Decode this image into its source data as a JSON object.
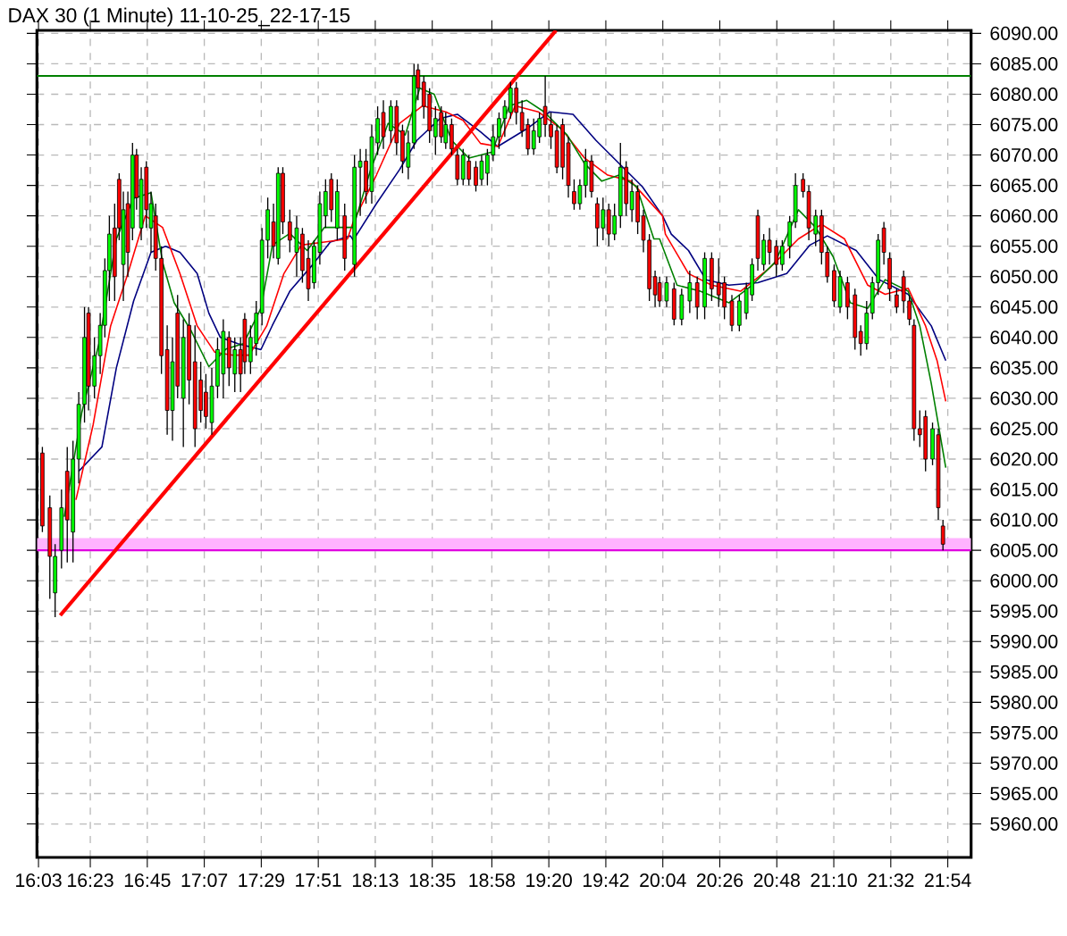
{
  "chart_data": {
    "type": "candlestick",
    "title": "DAX 30 (1 Minute) 11-10-25_22-17-15",
    "xlim": [
      16.04,
      22.05
    ],
    "ylim": [
      5954.5,
      6090.5
    ],
    "grid": true,
    "xticks": [
      {
        "value": 16.05,
        "label": "16:03"
      },
      {
        "value": 16.3833,
        "label": "16:23"
      },
      {
        "value": 16.75,
        "label": "16:45"
      },
      {
        "value": 17.1167,
        "label": "17:07"
      },
      {
        "value": 17.4833,
        "label": "17:29"
      },
      {
        "value": 17.85,
        "label": "17:51"
      },
      {
        "value": 18.2167,
        "label": "18:13"
      },
      {
        "value": 18.5833,
        "label": "18:35"
      },
      {
        "value": 18.9667,
        "label": "18:58"
      },
      {
        "value": 19.3333,
        "label": "19:20"
      },
      {
        "value": 19.7,
        "label": "19:42"
      },
      {
        "value": 20.0667,
        "label": "20:04"
      },
      {
        "value": 20.4333,
        "label": "20:26"
      },
      {
        "value": 20.8,
        "label": "20:48"
      },
      {
        "value": 21.1667,
        "label": "21:10"
      },
      {
        "value": 21.5333,
        "label": "21:32"
      },
      {
        "value": 21.9,
        "label": "21:54"
      }
    ],
    "yticks": [
      {
        "value": 5960,
        "label": "5960.00"
      },
      {
        "value": 5965,
        "label": "5965.00"
      },
      {
        "value": 5970,
        "label": "5970.00"
      },
      {
        "value": 5975,
        "label": "5975.00"
      },
      {
        "value": 5980,
        "label": "5980.00"
      },
      {
        "value": 5985,
        "label": "5985.00"
      },
      {
        "value": 5990,
        "label": "5990.00"
      },
      {
        "value": 5995,
        "label": "5995.00"
      },
      {
        "value": 6000,
        "label": "6000.00"
      },
      {
        "value": 6005,
        "label": "6005.00"
      },
      {
        "value": 6010,
        "label": "6010.00"
      },
      {
        "value": 6015,
        "label": "6015.00"
      },
      {
        "value": 6020,
        "label": "6020.00"
      },
      {
        "value": 6025,
        "label": "6025.00"
      },
      {
        "value": 6030,
        "label": "6030.00"
      },
      {
        "value": 6035,
        "label": "6035.00"
      },
      {
        "value": 6040,
        "label": "6040.00"
      },
      {
        "value": 6045,
        "label": "6045.00"
      },
      {
        "value": 6050,
        "label": "6050.00"
      },
      {
        "value": 6055,
        "label": "6055.00"
      },
      {
        "value": 6060,
        "label": "6060.00"
      },
      {
        "value": 6065,
        "label": "6065.00"
      },
      {
        "value": 6070,
        "label": "6070.00"
      },
      {
        "value": 6075,
        "label": "6075.00"
      },
      {
        "value": 6080,
        "label": "6080.00"
      },
      {
        "value": 6085,
        "label": "6085.00"
      },
      {
        "value": 6090,
        "label": "6090.00"
      }
    ],
    "bands": [
      {
        "axis": "y",
        "from": 6005,
        "to": 6007,
        "color": "#ffb3ff"
      }
    ],
    "ref_lines": [
      {
        "axis": "y",
        "value": 6083,
        "color": "#008000"
      },
      {
        "axis": "y",
        "value": 6005,
        "color": "#e000e0"
      }
    ],
    "x": [
      16.075,
      16.123,
      16.157,
      16.198,
      16.235,
      16.272,
      16.309,
      16.346,
      16.372,
      16.41,
      16.447,
      16.477,
      16.506,
      16.54,
      16.569,
      16.596,
      16.625,
      16.655,
      16.681,
      16.711,
      16.744,
      16.774,
      16.804,
      16.841,
      16.878,
      16.912,
      16.945,
      16.982,
      17.019,
      17.057,
      17.094,
      17.127,
      17.165,
      17.202,
      17.239,
      17.276,
      17.313,
      17.35,
      17.377,
      17.414,
      17.451,
      17.488,
      17.525,
      17.562,
      17.592,
      17.622,
      17.667,
      17.711,
      17.748,
      17.786,
      17.823,
      17.86,
      17.897,
      17.934,
      17.972,
      18.02,
      18.083,
      18.12,
      18.157,
      18.194,
      18.232,
      18.269,
      18.317,
      18.354,
      18.392,
      18.429,
      18.466,
      18.492,
      18.529,
      18.566,
      18.604,
      18.641,
      18.67,
      18.708,
      18.745,
      18.782,
      18.819,
      18.864,
      18.901,
      18.938,
      18.975,
      19.013,
      19.05,
      19.087,
      19.124,
      19.161,
      19.199,
      19.236,
      19.273,
      19.31,
      19.347,
      19.385,
      19.422,
      19.459,
      19.496,
      19.533,
      19.57,
      19.608,
      19.645,
      19.682,
      19.719,
      19.756,
      19.794,
      19.831,
      19.868,
      19.905,
      19.942,
      19.98,
      20.017,
      20.046,
      20.091,
      20.139,
      20.188,
      20.24,
      20.288,
      20.336,
      20.381,
      20.426,
      20.463,
      20.511,
      20.559,
      20.604,
      20.641,
      20.678,
      20.716,
      20.753,
      20.797,
      20.835,
      20.883,
      20.92,
      20.969,
      21.006,
      21.05,
      21.088,
      21.125,
      21.169,
      21.207,
      21.255,
      21.303,
      21.34,
      21.378,
      21.415,
      21.452,
      21.489,
      21.526,
      21.571,
      21.616,
      21.653,
      21.683,
      21.72,
      21.757,
      21.802,
      21.839,
      21.869
    ],
    "ohlc": [
      [
        6021,
        6022,
        6008,
        6009
      ],
      [
        6012,
        6014,
        5997,
        6004
      ],
      [
        5998,
        6006,
        5994,
        6004
      ],
      [
        6005,
        6015,
        6002,
        6012
      ],
      [
        6018,
        6022,
        6003,
        6010
      ],
      [
        6008,
        6023,
        6003,
        6020
      ],
      [
        6020,
        6031,
        6016,
        6029
      ],
      [
        6029,
        6045,
        6026,
        6040
      ],
      [
        6044,
        6045,
        6028,
        6032
      ],
      [
        6032,
        6040,
        6030,
        6037
      ],
      [
        6037,
        6044,
        6034,
        6042
      ],
      [
        6042,
        6053,
        6040,
        6051
      ],
      [
        6051,
        6060,
        6046,
        6057
      ],
      [
        6058,
        6062,
        6046,
        6050
      ],
      [
        6066,
        6067,
        6056,
        6058
      ],
      [
        6052,
        6064,
        6046,
        6061
      ],
      [
        6062,
        6064,
        6050,
        6054
      ],
      [
        6058,
        6072,
        6056,
        6070
      ],
      [
        6070,
        6071,
        6061,
        6063
      ],
      [
        6058,
        6068,
        6056,
        6066
      ],
      [
        6068,
        6069,
        6058,
        6061
      ],
      [
        6058,
        6064,
        6054,
        6062
      ],
      [
        6060,
        6062,
        6051,
        6053
      ],
      [
        6053,
        6055,
        6034,
        6037
      ],
      [
        6038,
        6042,
        6024,
        6028
      ],
      [
        6028,
        6040,
        6023,
        6036
      ],
      [
        6044,
        6047,
        6030,
        6032
      ],
      [
        6030,
        6043,
        6022,
        6040
      ],
      [
        6042,
        6044,
        6029,
        6033
      ],
      [
        6036,
        6042,
        6022,
        6025
      ],
      [
        6033,
        6036,
        6026,
        6028
      ],
      [
        6031,
        6034,
        6025,
        6027
      ],
      [
        6026,
        6035,
        6024,
        6032
      ],
      [
        6032,
        6040,
        6030,
        6038
      ],
      [
        6034,
        6043,
        6030,
        6041
      ],
      [
        6040,
        6041,
        6032,
        6035
      ],
      [
        6034,
        6040,
        6031,
        6038
      ],
      [
        6038,
        6040,
        6031,
        6034
      ],
      [
        6043,
        6044,
        6034,
        6036
      ],
      [
        6036,
        6042,
        6034,
        6040
      ],
      [
        6039,
        6046,
        6037,
        6044
      ],
      [
        6044,
        6058,
        6042,
        6056
      ],
      [
        6056,
        6063,
        6053,
        6061
      ],
      [
        6059,
        6062,
        6053,
        6055
      ],
      [
        6053,
        6068,
        6052,
        6067
      ],
      [
        6067,
        6068,
        6057,
        6059
      ],
      [
        6059,
        6061,
        6054,
        6056
      ],
      [
        6054,
        6060,
        6050,
        6058
      ],
      [
        6057,
        6058,
        6049,
        6051
      ],
      [
        6053,
        6056,
        6046,
        6048
      ],
      [
        6049,
        6056,
        6048,
        6055
      ],
      [
        6054,
        6064,
        6052,
        6062
      ],
      [
        6060,
        6066,
        6058,
        6064
      ],
      [
        6066,
        6067,
        6059,
        6061
      ],
      [
        6058,
        6066,
        6056,
        6064
      ],
      [
        6060,
        6062,
        6051,
        6053
      ],
      [
        6052,
        6070,
        6050,
        6068
      ],
      [
        6068,
        6071,
        6060,
        6069
      ],
      [
        6069,
        6071,
        6062,
        6064
      ],
      [
        6064,
        6075,
        6062,
        6073
      ],
      [
        6072,
        6078,
        6070,
        6076
      ],
      [
        6077,
        6079,
        6071,
        6073
      ],
      [
        6074,
        6079,
        6072,
        6078
      ],
      [
        6078,
        6079,
        6070,
        6072
      ],
      [
        6074,
        6075,
        6067,
        6069
      ],
      [
        6068,
        6074,
        6066,
        6072
      ],
      [
        6072,
        6085,
        6071,
        6083
      ],
      [
        6084,
        6085,
        6079,
        6081
      ],
      [
        6082,
        6083,
        6076,
        6078
      ],
      [
        6080,
        6081,
        6072,
        6074
      ],
      [
        6073,
        6078,
        6070,
        6076
      ],
      [
        6077,
        6078,
        6072,
        6073
      ],
      [
        6072,
        6077,
        6071,
        6075
      ],
      [
        6075,
        6076,
        6070,
        6071
      ],
      [
        6070,
        6071,
        6065,
        6066
      ],
      [
        6066,
        6071,
        6065,
        6070
      ],
      [
        6069,
        6070,
        6065,
        6066
      ],
      [
        6068,
        6069,
        6064,
        6065
      ],
      [
        6066,
        6070,
        6065,
        6069
      ],
      [
        6067,
        6071,
        6065,
        6070
      ],
      [
        6070,
        6075,
        6069,
        6073
      ],
      [
        6073,
        6077,
        6071,
        6076
      ],
      [
        6076,
        6079,
        6073,
        6078
      ],
      [
        6077,
        6082,
        6076,
        6081
      ],
      [
        6081,
        6082,
        6075,
        6077
      ],
      [
        6077,
        6079,
        6073,
        6074
      ],
      [
        6075,
        6076,
        6070,
        6071
      ],
      [
        6071,
        6076,
        6070,
        6074
      ],
      [
        6073,
        6077,
        6072,
        6076
      ],
      [
        6078,
        6083,
        6073,
        6075
      ],
      [
        6075,
        6077,
        6071,
        6073
      ],
      [
        6074,
        6075,
        6067,
        6068
      ],
      [
        6075,
        6076,
        6066,
        6068
      ],
      [
        6072,
        6073,
        6063,
        6065
      ],
      [
        6064,
        6066,
        6061,
        6062
      ],
      [
        6062,
        6066,
        6061,
        6065
      ],
      [
        6065,
        6071,
        6063,
        6069
      ],
      [
        6069,
        6070,
        6063,
        6064
      ],
      [
        6062,
        6063,
        6055,
        6058
      ],
      [
        6058,
        6063,
        6056,
        6061
      ],
      [
        6061,
        6062,
        6055,
        6057
      ],
      [
        6057,
        6062,
        6056,
        6060
      ],
      [
        6060,
        6072,
        6058,
        6068
      ],
      [
        6068,
        6069,
        6060,
        6062
      ],
      [
        6061,
        6066,
        6059,
        6064
      ],
      [
        6064,
        6065,
        6057,
        6059
      ],
      [
        6060,
        6061,
        6054,
        6056
      ],
      [
        6056,
        6057,
        6046,
        6048
      ],
      [
        6050,
        6051,
        6045,
        6047
      ],
      [
        6049,
        6050,
        6045,
        6046
      ],
      [
        6046,
        6050,
        6045,
        6049
      ],
      [
        6048,
        6049,
        6042,
        6043
      ],
      [
        6043,
        6048,
        6042,
        6047
      ],
      [
        6046,
        6051,
        6044,
        6049
      ],
      [
        6049,
        6050,
        6043,
        6045
      ],
      [
        6045,
        6054,
        6043,
        6053
      ],
      [
        6053,
        6054,
        6046,
        6048
      ],
      [
        6049,
        6053,
        6045,
        6047
      ],
      [
        6049,
        6050,
        6043,
        6045
      ],
      [
        6046,
        6047,
        6041,
        6042
      ],
      [
        6042,
        6047,
        6041,
        6046
      ],
      [
        6044,
        6049,
        6043,
        6048
      ],
      [
        6047,
        6053,
        6046,
        6052
      ],
      [
        6060,
        6061,
        6051,
        6053
      ],
      [
        6052,
        6057,
        6051,
        6056
      ],
      [
        6056,
        6058,
        6052,
        6054
      ],
      [
        6055,
        6056,
        6050,
        6052
      ],
      [
        6052,
        6056,
        6051,
        6055
      ],
      [
        6055,
        6060,
        6053,
        6059
      ],
      [
        6059,
        6067,
        6058,
        6065
      ],
      [
        6066,
        6067,
        6063,
        6064
      ],
      [
        6064,
        6065,
        6056,
        6058
      ],
      [
        6057,
        6061,
        6055,
        6060
      ],
      [
        6060,
        6061,
        6052,
        6054
      ],
      [
        6054,
        6055,
        6049,
        6050
      ],
      [
        6051,
        6052,
        6045,
        6046
      ],
      [
        6045,
        6051,
        6044,
        6050
      ],
      [
        6049,
        6050,
        6043,
        6045
      ],
      [
        6047,
        6048,
        6038,
        6040
      ],
      [
        6041,
        6042,
        6037,
        6039
      ],
      [
        6039,
        6046,
        6038,
        6044
      ],
      [
        6044,
        6050,
        6043,
        6049
      ],
      [
        6049,
        6057,
        6047,
        6056
      ],
      [
        6058,
        6059,
        6052,
        6054
      ],
      [
        6053,
        6054,
        6046,
        6048
      ],
      [
        6047,
        6048,
        6044,
        6045
      ],
      [
        6050,
        6051,
        6044,
        6046
      ],
      [
        6046,
        6047,
        6042,
        6043
      ],
      [
        6042,
        6043,
        6023,
        6025
      ],
      [
        6025,
        6028,
        6022,
        6024
      ],
      [
        6027,
        6028,
        6018,
        6020
      ],
      [
        6020,
        6026,
        6019,
        6025
      ],
      [
        6024,
        6025,
        6010,
        6012
      ],
      [
        6009,
        6010,
        6005,
        6006
      ]
    ],
    "series": [
      {
        "type": "line",
        "color": "#000080",
        "x": [
          16.309,
          16.458,
          16.551,
          16.662,
          16.774,
          16.867,
          16.96,
          17.071,
          17.146,
          17.22,
          17.332,
          17.481,
          17.555,
          17.667,
          17.815,
          17.927,
          18.057,
          18.075,
          18.224,
          18.373,
          18.484,
          18.633,
          18.745,
          18.894,
          19.005,
          19.191,
          19.34,
          19.489,
          19.637,
          19.786,
          19.935,
          20.065,
          20.121,
          20.232,
          20.344,
          20.492,
          20.678,
          20.864,
          21.013,
          21.125,
          21.311,
          21.459,
          21.645,
          21.794,
          21.887
        ],
        "values": [
          6018,
          6022,
          6035,
          6046,
          6054,
          6055,
          6054,
          6050.5,
          6044,
          6040,
          6039,
          6038,
          6042,
          6047.6,
          6052,
          6055.7,
          6056.7,
          6056,
          6062,
          6067.6,
          6072.4,
          6076,
          6076.7,
          6073.8,
          6071.4,
          6074.3,
          6077.1,
          6076.7,
          6072.4,
          6068.6,
          6064.8,
          6060,
          6057,
          6054.3,
          6049.5,
          6048.6,
          6049,
          6050.5,
          6055.2,
          6056.7,
          6054.3,
          6049.5,
          6047.1,
          6041.9,
          6036.2
        ]
      },
      {
        "type": "line",
        "color": "#ff0000",
        "x": [
          16.291,
          16.402,
          16.514,
          16.625,
          16.737,
          16.848,
          16.96,
          17.071,
          17.183,
          17.295,
          17.406,
          17.518,
          17.629,
          17.741,
          17.89,
          18.038,
          18.075,
          18.224,
          18.373,
          18.522,
          18.67,
          18.782,
          18.894,
          19.005,
          19.117,
          19.265,
          19.414,
          19.563,
          19.712,
          19.861,
          20.065,
          20.083,
          20.232,
          20.381,
          20.567,
          20.753,
          20.939,
          21.088,
          21.236,
          21.385,
          21.497,
          21.645,
          21.757,
          21.831,
          21.887
        ],
        "values": [
          6013.3,
          6025.7,
          6041.9,
          6050.5,
          6060,
          6058.1,
          6050.5,
          6041.9,
          6037.6,
          6037.1,
          6037.1,
          6041.9,
          6050.5,
          6055.2,
          6055.7,
          6056.2,
          6059,
          6066.7,
          6075.2,
          6078.1,
          6077.1,
          6075.7,
          6071.9,
          6071.4,
          6078.1,
          6077.1,
          6074.3,
          6069.5,
          6066.7,
          6065.7,
          6060,
          6057,
          6050.5,
          6048.6,
          6047.6,
          6051.4,
          6056.2,
          6058.6,
          6056.2,
          6048.6,
          6047.1,
          6048.1,
          6041.9,
          6036.2,
          6029.5
        ]
      },
      {
        "type": "line",
        "color": "#008000",
        "x": [
          16.216,
          16.328,
          16.439,
          16.551,
          16.662,
          16.774,
          16.848,
          16.923,
          17.034,
          17.146,
          17.257,
          17.369,
          17.481,
          17.555,
          17.667,
          17.778,
          17.89,
          18.02,
          18.075,
          18.187,
          18.299,
          18.41,
          18.503,
          18.596,
          18.708,
          18.819,
          18.968,
          19.079,
          19.191,
          19.303,
          19.451,
          19.563,
          19.674,
          19.786,
          19.898,
          20.009,
          20.046,
          20.158,
          20.307,
          20.492,
          20.641,
          20.79,
          20.939,
          21.05,
          21.162,
          21.273,
          21.385,
          21.497,
          21.645,
          21.72,
          21.794,
          21.887
        ],
        "values": [
          6010.5,
          6027.6,
          6039,
          6056.2,
          6062.9,
          6063.8,
          6052.4,
          6045.7,
          6041,
          6035.2,
          6038.1,
          6039,
          6044.8,
          6055.2,
          6057.1,
          6054.3,
          6058.1,
          6058.1,
          6058.1,
          6067.6,
          6075.2,
          6073.3,
          6081,
          6080,
          6072.4,
          6069.5,
          6070.5,
          6078.1,
          6079,
          6077.1,
          6073.3,
          6068.6,
          6065.7,
          6066.7,
          6064.8,
          6056.2,
          6056.2,
          6048.6,
          6047.6,
          6045.7,
          6048.6,
          6052.4,
          6061,
          6058.1,
          6053.3,
          6045.7,
          6044.8,
          6049.5,
          6047.6,
          6041.9,
          6032.4,
          6018.6
        ]
      },
      {
        "type": "line",
        "color": "#ff0000",
        "x": [
          16.19,
          19.38
        ],
        "values": [
          5994.3,
          6090.5
        ]
      }
    ]
  }
}
